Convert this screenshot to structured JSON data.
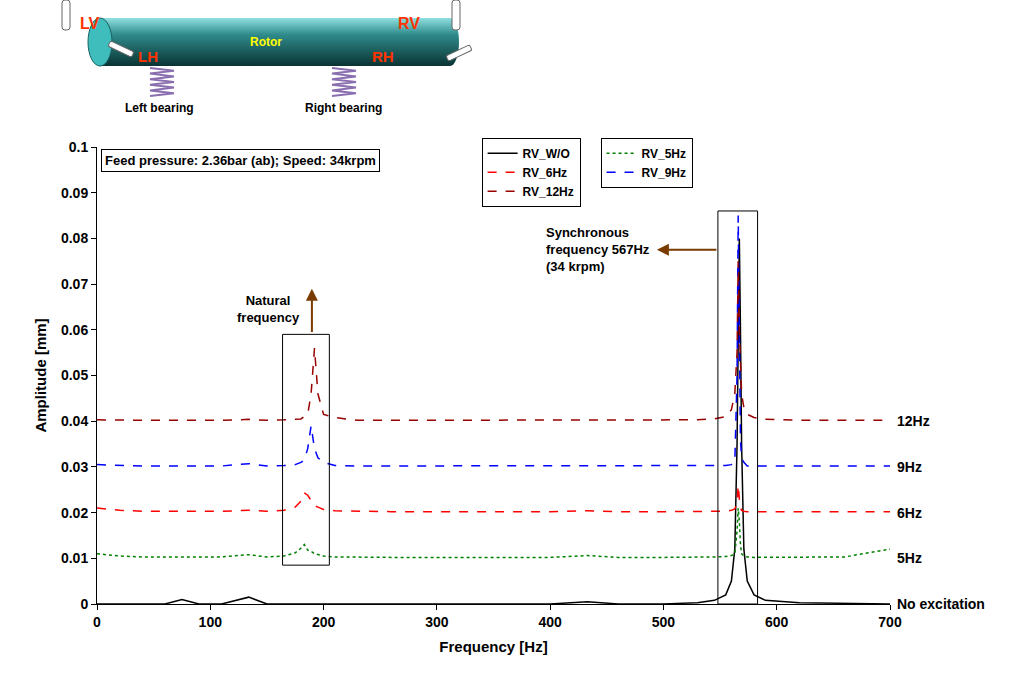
{
  "chart_data": {
    "type": "line",
    "x_label": "Frequency [Hz]",
    "y_label": "Amplitude [mm]",
    "xlim": [
      0,
      700
    ],
    "xticks": [
      0,
      100,
      200,
      300,
      400,
      500,
      600,
      700
    ],
    "ylim": [
      0,
      0.1
    ],
    "yticks": [
      0,
      0.01,
      0.02,
      0.03,
      0.04,
      0.05,
      0.06,
      0.07,
      0.08,
      0.09,
      0.1
    ],
    "grid": false,
    "legend": "top",
    "x": [
      0,
      20,
      40,
      60,
      75,
      90,
      110,
      134,
      150,
      165,
      175,
      180,
      183,
      186,
      189,
      192,
      195,
      200,
      210,
      230,
      260,
      300,
      350,
      400,
      433,
      460,
      500,
      530,
      545,
      555,
      560,
      563,
      565,
      566,
      567,
      568,
      569,
      571,
      574,
      580,
      590,
      620,
      660,
      700
    ],
    "series": [
      {
        "name": "RV_W/O",
        "color": "#000000",
        "line_style": "solid",
        "values": [
          0,
          0,
          0,
          0,
          0.001,
          0,
          0,
          0.0015,
          0,
          0,
          0,
          0,
          0,
          0,
          0,
          0,
          0,
          0,
          0,
          0,
          0,
          0,
          0,
          0,
          0.0005,
          0,
          0,
          0.0003,
          0.0008,
          0.002,
          0.005,
          0.012,
          0.035,
          0.06,
          0.08,
          0.06,
          0.035,
          0.012,
          0.005,
          0.002,
          0.0008,
          0.0003,
          0.0001,
          0
        ]
      },
      {
        "name": "RV_5Hz",
        "color": "#008000",
        "line_style": "dotted",
        "values": [
          0.011,
          0.0105,
          0.0103,
          0.0103,
          0.0104,
          0.0103,
          0.0103,
          0.0108,
          0.0103,
          0.0105,
          0.0112,
          0.0122,
          0.013,
          0.0118,
          0.0115,
          0.011,
          0.0108,
          0.0105,
          0.0103,
          0.0102,
          0.0102,
          0.0102,
          0.0102,
          0.0102,
          0.0106,
          0.0102,
          0.0102,
          0.0102,
          0.0103,
          0.0104,
          0.0106,
          0.011,
          0.016,
          0.021,
          0.018,
          0.013,
          0.011,
          0.0105,
          0.0103,
          0.0102,
          0.0102,
          0.0102,
          0.0103,
          0.012
        ]
      },
      {
        "name": "RV_6Hz",
        "color": "#ff0000",
        "line_style": "dashed",
        "values": [
          0.021,
          0.0205,
          0.0203,
          0.0203,
          0.0203,
          0.0203,
          0.0203,
          0.0205,
          0.0203,
          0.0205,
          0.0212,
          0.0225,
          0.0243,
          0.0238,
          0.0225,
          0.0215,
          0.0212,
          0.0207,
          0.0204,
          0.0203,
          0.0202,
          0.0202,
          0.0202,
          0.0202,
          0.0204,
          0.0202,
          0.0202,
          0.0202,
          0.0202,
          0.0203,
          0.0205,
          0.0208,
          0.022,
          0.026,
          0.023,
          0.021,
          0.0205,
          0.0203,
          0.0202,
          0.0202,
          0.0202,
          0.0202,
          0.0202,
          0.0202
        ]
      },
      {
        "name": "RV_9Hz",
        "color": "#0000ff",
        "line_style": "dashed",
        "values": [
          0.0305,
          0.0303,
          0.0302,
          0.0302,
          0.0302,
          0.0302,
          0.0302,
          0.0307,
          0.0302,
          0.0303,
          0.0305,
          0.031,
          0.0315,
          0.034,
          0.039,
          0.034,
          0.032,
          0.031,
          0.0303,
          0.0302,
          0.0302,
          0.0302,
          0.0302,
          0.0302,
          0.0303,
          0.0302,
          0.0302,
          0.0302,
          0.0302,
          0.0303,
          0.0305,
          0.031,
          0.05,
          0.085,
          0.06,
          0.036,
          0.032,
          0.031,
          0.0302,
          0.0302,
          0.0302,
          0.0302,
          0.0302,
          0.0302
        ]
      },
      {
        "name": "RV_12Hz",
        "color": "#990000",
        "line_style": "dashed",
        "values": [
          0.0403,
          0.0402,
          0.0402,
          0.0402,
          0.0402,
          0.0402,
          0.0402,
          0.0404,
          0.0402,
          0.0403,
          0.0404,
          0.0405,
          0.041,
          0.0415,
          0.046,
          0.056,
          0.046,
          0.0415,
          0.0408,
          0.0402,
          0.0402,
          0.0402,
          0.0402,
          0.0402,
          0.0403,
          0.0402,
          0.0402,
          0.0403,
          0.0405,
          0.041,
          0.0425,
          0.046,
          0.055,
          0.075,
          0.06,
          0.05,
          0.046,
          0.043,
          0.0415,
          0.0408,
          0.0404,
          0.0402,
          0.0402,
          0.0402
        ]
      }
    ],
    "end_labels": [
      {
        "text": "12Hz",
        "y": 0.04
      },
      {
        "text": "9Hz",
        "y": 0.03
      },
      {
        "text": "6Hz",
        "y": 0.02
      },
      {
        "text": "5Hz",
        "y": 0.01
      },
      {
        "text": "No excitation",
        "y": 0
      }
    ],
    "annotations": {
      "box": "Feed pressure: 2.36bar (ab); Speed: 34krpm",
      "natural": [
        "Natural",
        "frequency"
      ],
      "synchronous": [
        "Synchronous",
        "frequency 567Hz",
        "(34 krpm)"
      ]
    }
  },
  "diagram": {
    "probes": [
      "LV",
      "RV",
      "LH",
      "RH"
    ],
    "rotor": "Rotor",
    "bearings": [
      "Left bearing",
      "Right bearing"
    ]
  }
}
